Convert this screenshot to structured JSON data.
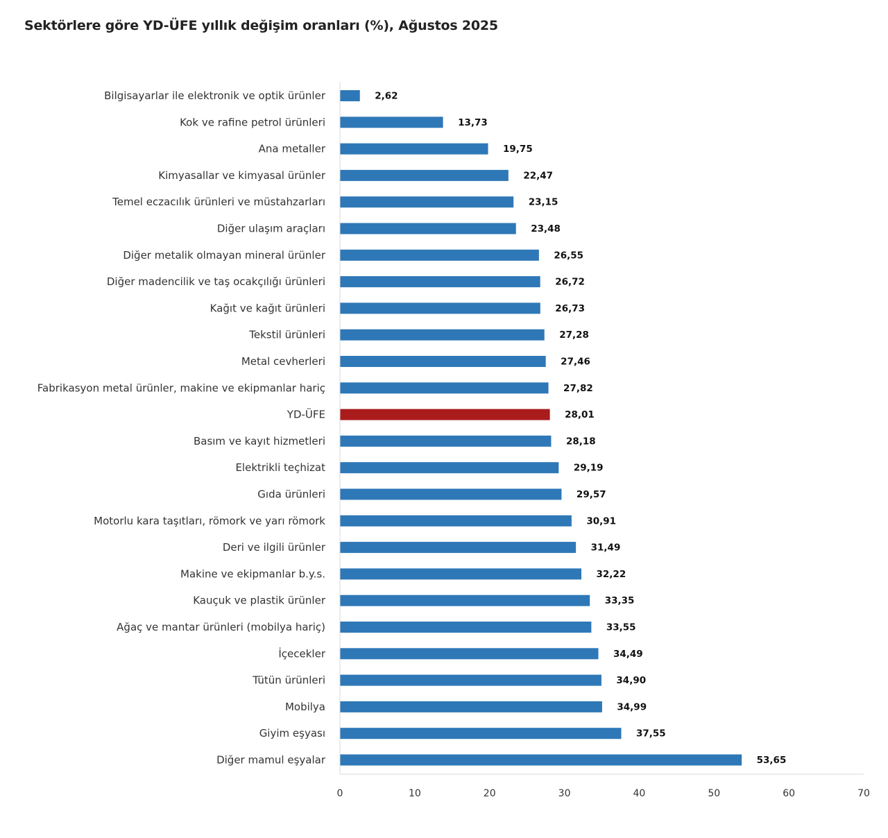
{
  "chart_data": {
    "type": "bar",
    "orientation": "horizontal",
    "title": "Sektörlere göre YD-ÜFE yıllık değişim oranları (%), Ağustos 2025",
    "xlabel": "",
    "ylabel": "",
    "xlim": [
      0,
      70
    ],
    "xticks": [
      0,
      10,
      20,
      30,
      40,
      50,
      60,
      70
    ],
    "grid": false,
    "colors": {
      "default": "#2e78b7",
      "highlight": "#aa1c1c"
    },
    "categories": [
      "Bilgisayarlar ile elektronik ve optik ürünler",
      "Kok ve rafine petrol ürünleri",
      "Ana metaller",
      "Kimyasallar ve kimyasal ürünler",
      "Temel eczacılık ürünleri ve müstahzarları",
      "Diğer ulaşım araçları",
      "Diğer metalik olmayan mineral ürünler",
      "Diğer madencilik ve taş ocakçılığı ürünleri",
      "Kağıt ve kağıt ürünleri",
      "Tekstil ürünleri",
      "Metal cevherleri",
      "Fabrikasyon metal ürünler, makine ve ekipmanlar hariç",
      "YD-ÜFE",
      "Basım ve kayıt hizmetleri",
      "Elektrikli teçhizat",
      "Gıda ürünleri",
      "Motorlu kara taşıtları, römork ve yarı römork",
      "Deri ve ilgili ürünler",
      "Makine ve ekipmanlar b.y.s.",
      "Kauçuk ve plastik ürünler",
      "Ağaç ve mantar ürünleri (mobilya hariç)",
      "İçecekler",
      "Tütün ürünleri",
      "Mobilya",
      "Giyim eşyası",
      "Diğer mamul eşyalar"
    ],
    "values": [
      2.62,
      13.73,
      19.75,
      22.47,
      23.15,
      23.48,
      26.55,
      26.72,
      26.73,
      27.28,
      27.46,
      27.82,
      28.01,
      28.18,
      29.19,
      29.57,
      30.91,
      31.49,
      32.22,
      33.35,
      33.55,
      34.49,
      34.9,
      34.99,
      37.55,
      53.65
    ],
    "value_labels": [
      "2,62",
      "13,73",
      "19,75",
      "22,47",
      "23,15",
      "23,48",
      "26,55",
      "26,72",
      "26,73",
      "27,28",
      "27,46",
      "27,82",
      "28,01",
      "28,18",
      "29,19",
      "29,57",
      "30,91",
      "31,49",
      "32,22",
      "33,35",
      "33,55",
      "34,49",
      "34,90",
      "34,99",
      "37,55",
      "53,65"
    ],
    "highlight_category": "YD-ÜFE"
  }
}
